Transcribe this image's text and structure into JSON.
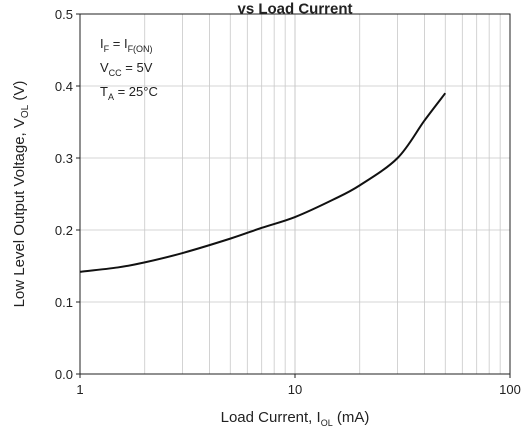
{
  "chart_data": {
    "type": "line",
    "title": "vs Load Current",
    "xlabel": {
      "main": "Load Current, I",
      "sub": "OL",
      "tail": " (mA)"
    },
    "ylabel": {
      "main": "Low Level Output Voltage, V",
      "sub": "OL",
      "tail": " (V)"
    },
    "x_scale": "log",
    "xlim": [
      1,
      100
    ],
    "ylim": [
      0,
      0.5
    ],
    "grid": true,
    "x_tick_labels": [
      "1",
      "10",
      "100"
    ],
    "y_tick_labels": [
      "0.0",
      "0.1",
      "0.2",
      "0.3",
      "0.4",
      "0.5"
    ],
    "annotations": [
      {
        "main": "I",
        "sub": "F",
        "mid": " = I",
        "sub2": "F(ON)",
        "tail": ""
      },
      {
        "main": "V",
        "sub": "CC",
        "mid": " = 5V",
        "sub2": "",
        "tail": ""
      },
      {
        "main": "T",
        "sub": "A",
        "mid": " = 25°C",
        "sub2": "",
        "tail": ""
      }
    ],
    "series": [
      {
        "x": [
          1,
          1.5,
          2,
          3,
          5,
          7,
          10,
          15,
          20,
          30,
          40,
          50
        ],
        "y": [
          0.142,
          0.148,
          0.155,
          0.168,
          0.188,
          0.203,
          0.218,
          0.242,
          0.262,
          0.3,
          0.352,
          0.39
        ]
      }
    ]
  }
}
